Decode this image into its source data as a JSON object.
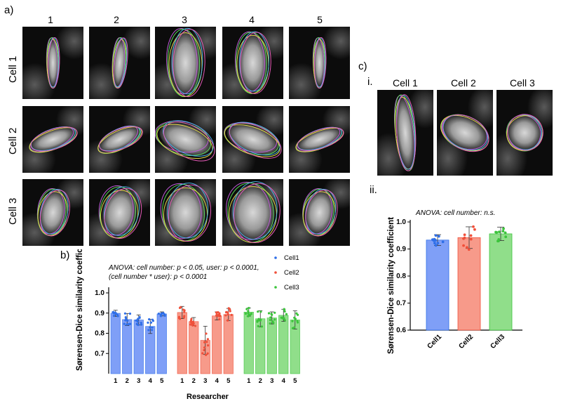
{
  "panel_a": {
    "label": "a)",
    "columns": [
      "1",
      "2",
      "3",
      "4",
      "5"
    ],
    "rows": [
      "Cell 1",
      "Cell 2",
      "Cell 3"
    ]
  },
  "panel_c": {
    "label": "c)",
    "sub_i": "i.",
    "sub_ii": "ii.",
    "columns": [
      "Cell 1",
      "Cell 2",
      "Cell 3"
    ]
  },
  "colors": {
    "cell1": "#2f6fe8",
    "cell2": "#f0503a",
    "cell3": "#3cc43c",
    "cell1_bar": "#7f9ff7",
    "cell2_bar": "#f79a8a",
    "cell3_bar": "#90de8a"
  },
  "chart_data": [
    {
      "panel": "b)",
      "type": "bar",
      "annotation_lines": [
        "ANOVA: cell number: p < 0.05, user: p < 0.0001,",
        "(cell number * user): p < 0.0001"
      ],
      "xlabel": "Researcher",
      "ylabel": "Sørensen-Dice similarity coefficient",
      "ylim": [
        0.6,
        1.0
      ],
      "yticks": [
        "0.7",
        "0.8",
        "0.9",
        "1.0"
      ],
      "categories": [
        "1",
        "2",
        "3",
        "4",
        "5"
      ],
      "legend": [
        "Cell1",
        "Cell2",
        "Cell3"
      ],
      "legend_position": "top-right",
      "series": [
        {
          "name": "Cell1",
          "values": [
            0.899,
            0.868,
            0.866,
            0.834,
            0.896
          ],
          "errors": [
            0.015,
            0.03,
            0.025,
            0.035,
            0.01
          ]
        },
        {
          "name": "Cell2",
          "values": [
            0.903,
            0.858,
            0.765,
            0.886,
            0.893
          ],
          "errors": [
            0.03,
            0.02,
            0.07,
            0.02,
            0.03
          ]
        },
        {
          "name": "Cell3",
          "values": [
            0.905,
            0.872,
            0.876,
            0.889,
            0.866
          ],
          "errors": [
            0.02,
            0.04,
            0.03,
            0.03,
            0.045
          ]
        }
      ]
    },
    {
      "panel": "c) ii.",
      "type": "bar",
      "annotation_lines": [
        "ANOVA: cell number: n.s."
      ],
      "xlabel": "",
      "ylabel": "Sørensen-Dice similarity coefficient",
      "ylim": [
        0.6,
        1.0
      ],
      "yticks": [
        "0.6",
        "0.7",
        "0.8",
        "0.9",
        "1.0"
      ],
      "categories": [
        "Cell1",
        "Cell2",
        "Cell3"
      ],
      "values": [
        0.933,
        0.942,
        0.956
      ],
      "errors": [
        0.02,
        0.04,
        0.025
      ]
    }
  ]
}
